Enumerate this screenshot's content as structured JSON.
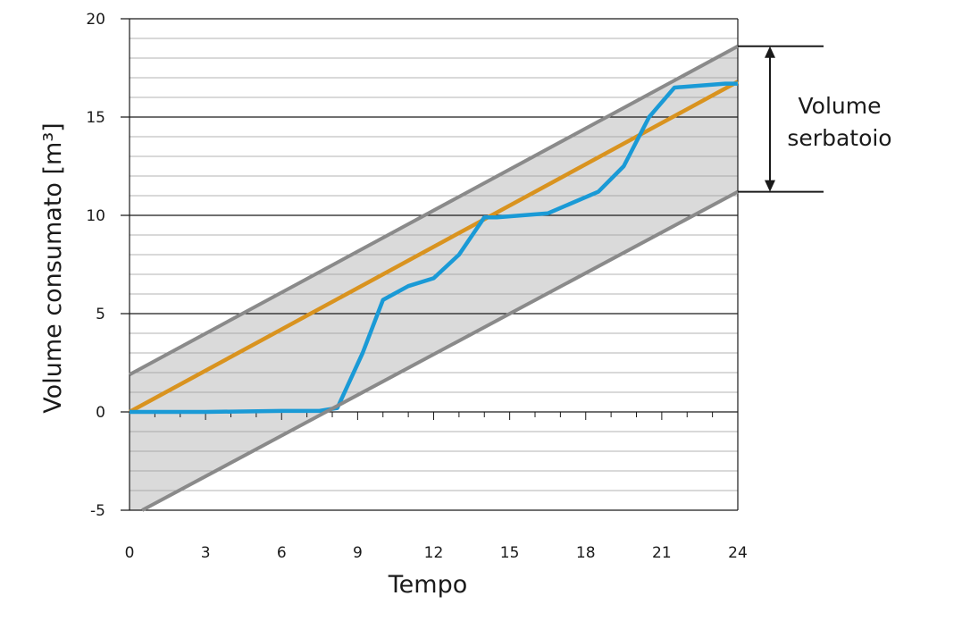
{
  "chart_data": {
    "type": "line",
    "xlabel": "Tempo",
    "ylabel": "Volume consumato [m³]",
    "xlim": [
      0,
      24
    ],
    "ylim": [
      -5,
      20
    ],
    "x_ticks": [
      "0",
      "3",
      "6",
      "9",
      "12",
      "15",
      "18",
      "21",
      "24"
    ],
    "y_ticks": [
      "20",
      "15",
      "10",
      "5",
      "0",
      "-5"
    ],
    "grid": true,
    "annotation": {
      "line1": "Volume",
      "line2": "serbatoio",
      "range": [
        11.2,
        18.6
      ]
    },
    "band": {
      "upper": {
        "x": [
          0,
          24
        ],
        "y": [
          1.9,
          18.6
        ]
      },
      "lower": {
        "x": [
          0.5,
          24
        ],
        "y": [
          -5.0,
          11.2
        ]
      }
    },
    "series": [
      {
        "color": "#d9931f",
        "x": [
          0,
          24
        ],
        "y": [
          0,
          16.8
        ]
      },
      {
        "color": "#1a9ad6",
        "x": [
          0,
          3,
          6,
          7.5,
          8.2,
          9.2,
          10,
          11,
          12,
          13,
          14,
          14.5,
          16.5,
          18.5,
          19.5,
          20.5,
          21.5,
          23.5,
          24
        ],
        "y": [
          0,
          0,
          0.05,
          0.05,
          0.2,
          3.0,
          5.7,
          6.4,
          6.8,
          8.0,
          9.9,
          9.9,
          10.1,
          11.2,
          12.5,
          15.0,
          16.5,
          16.7,
          16.7
        ]
      },
      {
        "color": "#8a8a8a",
        "x": [
          0,
          24
        ],
        "y": [
          1.9,
          18.6
        ]
      },
      {
        "color": "#8a8a8a",
        "x": [
          0.5,
          24
        ],
        "y": [
          -5.0,
          11.2
        ]
      }
    ]
  }
}
